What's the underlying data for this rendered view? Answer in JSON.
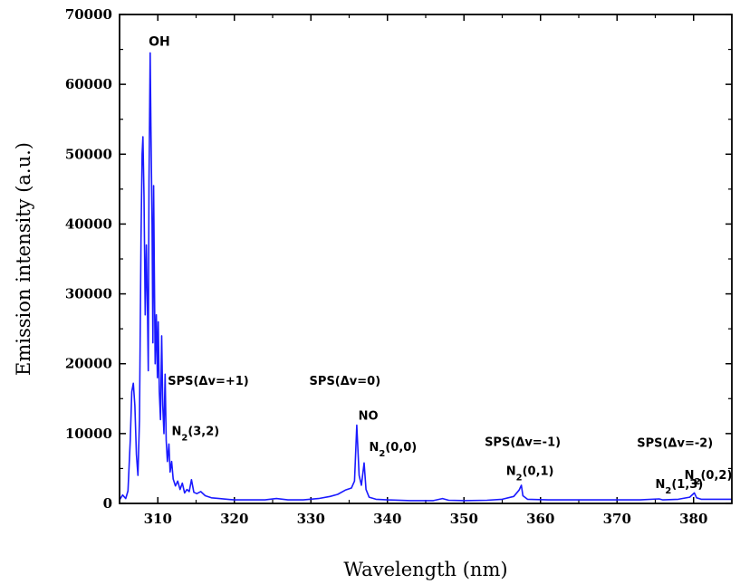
{
  "chart_data": {
    "type": "line",
    "xlabel": "Wavelength (nm)",
    "ylabel": "Emission intensity (a.u.)",
    "xlim": [
      305,
      385
    ],
    "ylim": [
      0,
      70000
    ],
    "x_ticks": [
      310,
      320,
      330,
      340,
      350,
      360,
      370,
      380
    ],
    "y_ticks": [
      0,
      10000,
      20000,
      30000,
      40000,
      50000,
      60000,
      70000
    ],
    "x_tick_labels": [
      "310",
      "320",
      "330",
      "340",
      "350",
      "360",
      "370",
      "380"
    ],
    "y_tick_labels": [
      "0",
      "10000",
      "20000",
      "30000",
      "40000",
      "50000",
      "60000",
      "70000"
    ],
    "grid": false,
    "line_color": "#1a1aff",
    "annotations": [
      {
        "id": "oh",
        "text": "OH",
        "x": 308.8,
        "y": 65500
      },
      {
        "id": "sps1",
        "text": "SPS(Δv=+1)",
        "x": 311.3,
        "y": 17000
      },
      {
        "id": "n232",
        "base": "N",
        "sub": "2",
        "rest": "(3,2)",
        "x": 311.8,
        "y": 9800
      },
      {
        "id": "sps0",
        "text": "SPS(Δv=0)",
        "x": 329.8,
        "y": 17000
      },
      {
        "id": "no",
        "text": "NO",
        "x": 336.2,
        "y": 12000
      },
      {
        "id": "n200",
        "base": "N",
        "sub": "2",
        "rest": "(0,0)",
        "x": 337.6,
        "y": 7500
      },
      {
        "id": "spsm1",
        "text": "SPS(Δv=-1)",
        "x": 352.7,
        "y": 8200
      },
      {
        "id": "n201",
        "base": "N",
        "sub": "2",
        "rest": "(0,1)",
        "x": 355.5,
        "y": 4100
      },
      {
        "id": "spsm2",
        "text": "SPS(Δv=-2)",
        "x": 372.6,
        "y": 8100
      },
      {
        "id": "n213",
        "base": "N",
        "sub": "2",
        "rest": "(1,3)",
        "x": 375.0,
        "y": 2200
      },
      {
        "id": "n202",
        "base": "N",
        "sub": "2",
        "rest": "(0,2)",
        "x": 378.8,
        "y": 3500
      }
    ],
    "series": [
      {
        "points": [
          [
            305.0,
            500
          ],
          [
            305.4,
            1200
          ],
          [
            305.8,
            700
          ],
          [
            306.1,
            1800
          ],
          [
            306.4,
            9000
          ],
          [
            306.6,
            16000
          ],
          [
            306.8,
            17200
          ],
          [
            307.0,
            14000
          ],
          [
            307.2,
            7000
          ],
          [
            307.4,
            4000
          ],
          [
            307.6,
            12000
          ],
          [
            307.8,
            38000
          ],
          [
            307.95,
            50000
          ],
          [
            308.05,
            52500
          ],
          [
            308.2,
            44000
          ],
          [
            308.35,
            27000
          ],
          [
            308.5,
            37000
          ],
          [
            308.65,
            28000
          ],
          [
            308.75,
            19000
          ],
          [
            308.85,
            46000
          ],
          [
            309.0,
            64500
          ],
          [
            309.1,
            54000
          ],
          [
            309.25,
            40000
          ],
          [
            309.35,
            23000
          ],
          [
            309.45,
            45500
          ],
          [
            309.55,
            33000
          ],
          [
            309.65,
            20000
          ],
          [
            309.8,
            27000
          ],
          [
            309.95,
            18000
          ],
          [
            310.05,
            26000
          ],
          [
            310.2,
            16000
          ],
          [
            310.35,
            12000
          ],
          [
            310.5,
            24000
          ],
          [
            310.65,
            14000
          ],
          [
            310.8,
            10000
          ],
          [
            310.95,
            18500
          ],
          [
            311.1,
            9000
          ],
          [
            311.25,
            6000
          ],
          [
            311.45,
            8500
          ],
          [
            311.6,
            4500
          ],
          [
            311.8,
            6000
          ],
          [
            312.0,
            3500
          ],
          [
            312.3,
            2500
          ],
          [
            312.6,
            3200
          ],
          [
            312.9,
            2000
          ],
          [
            313.2,
            2900
          ],
          [
            313.5,
            1500
          ],
          [
            313.8,
            2000
          ],
          [
            314.1,
            1700
          ],
          [
            314.4,
            3400
          ],
          [
            314.7,
            1600
          ],
          [
            315.1,
            1400
          ],
          [
            315.6,
            1700
          ],
          [
            316.2,
            1100
          ],
          [
            317.0,
            800
          ],
          [
            318.0,
            700
          ],
          [
            320.0,
            500
          ],
          [
            322.0,
            500
          ],
          [
            324.0,
            500
          ],
          [
            325.5,
            700
          ],
          [
            327.0,
            500
          ],
          [
            329.0,
            500
          ],
          [
            331.0,
            700
          ],
          [
            332.5,
            1000
          ],
          [
            333.5,
            1300
          ],
          [
            334.5,
            1900
          ],
          [
            335.3,
            2200
          ],
          [
            335.7,
            3200
          ],
          [
            336.0,
            11200
          ],
          [
            336.3,
            4000
          ],
          [
            336.6,
            2600
          ],
          [
            336.95,
            5800
          ],
          [
            337.2,
            2000
          ],
          [
            337.6,
            900
          ],
          [
            338.5,
            600
          ],
          [
            340.0,
            500
          ],
          [
            343.0,
            400
          ],
          [
            346.0,
            400
          ],
          [
            347.2,
            700
          ],
          [
            348.0,
            450
          ],
          [
            350.0,
            400
          ],
          [
            353.0,
            450
          ],
          [
            355.0,
            600
          ],
          [
            356.5,
            1000
          ],
          [
            357.2,
            1900
          ],
          [
            357.5,
            2600
          ],
          [
            357.7,
            1100
          ],
          [
            358.3,
            600
          ],
          [
            361.0,
            500
          ],
          [
            365.0,
            500
          ],
          [
            370.0,
            500
          ],
          [
            373.0,
            500
          ],
          [
            375.5,
            650
          ],
          [
            376.0,
            500
          ],
          [
            378.0,
            600
          ],
          [
            379.5,
            900
          ],
          [
            380.1,
            1500
          ],
          [
            380.4,
            800
          ],
          [
            381.0,
            600
          ],
          [
            383.0,
            600
          ],
          [
            385.0,
            600
          ]
        ]
      }
    ]
  }
}
